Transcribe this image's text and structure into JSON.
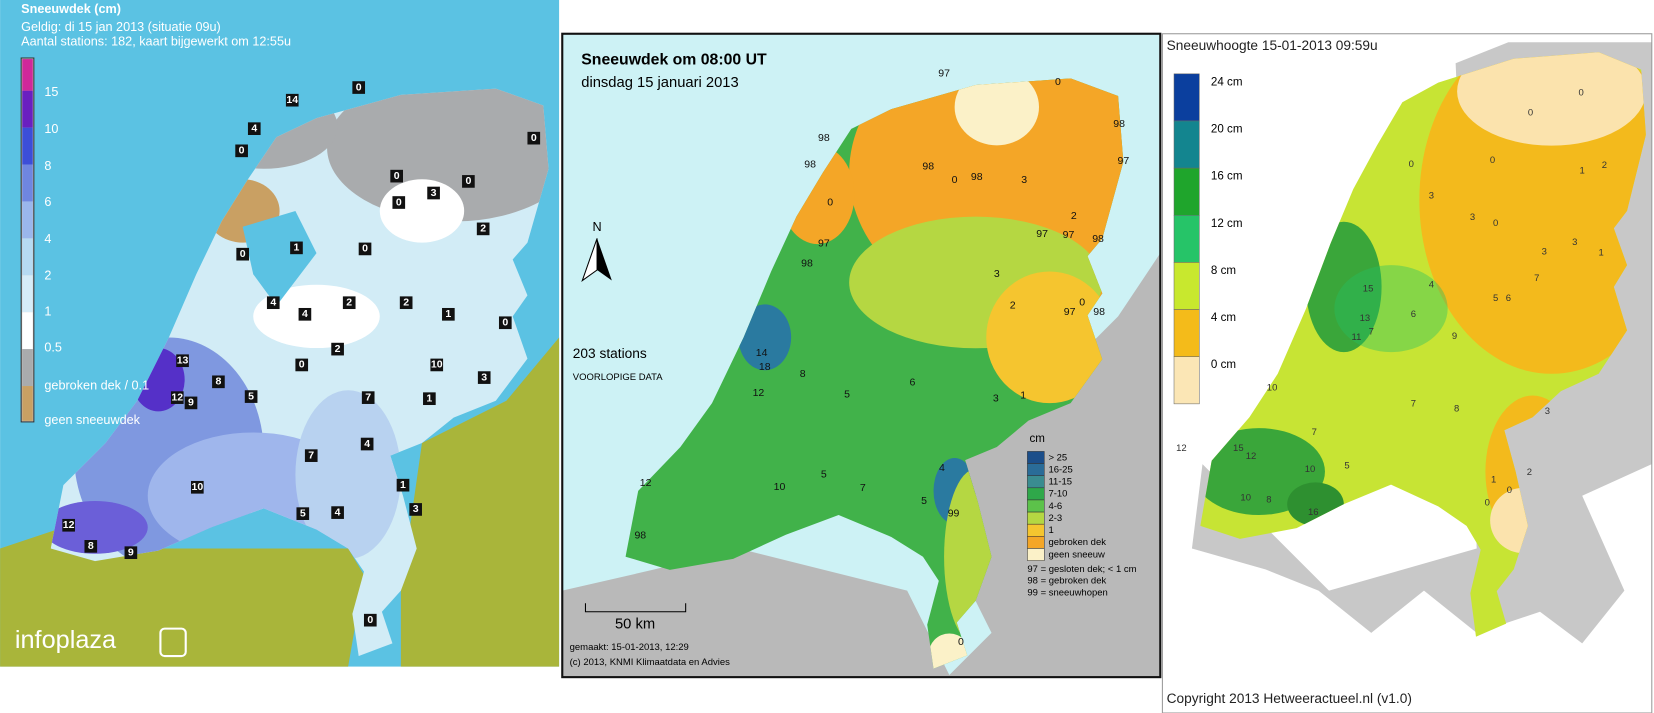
{
  "panels": [
    {
      "title": "Sneeuwdek (cm)",
      "lines": [
        "Geldig: di 15 jan 2013 (situatie 09u)",
        "Aantal stations: 182, kaart bijgewerkt om 12:55u"
      ],
      "legend": [
        "15",
        "10",
        "8",
        "6",
        "4",
        "2",
        "1",
        "0.5",
        "gebroken dek / 0.1",
        "geen sneeuwdek"
      ],
      "logo": "infoplaza",
      "stations": [
        0,
        14,
        4,
        0,
        0,
        0,
        3,
        0,
        0,
        2,
        0,
        1,
        0,
        4,
        4,
        2,
        2,
        1,
        0,
        13,
        8,
        12,
        9,
        5,
        2,
        0,
        10,
        1,
        3,
        7,
        10,
        7,
        5,
        4,
        4,
        12,
        8,
        9,
        3,
        0,
        1
      ]
    },
    {
      "title": "Sneeuwdek om 08:00 UT",
      "subtitle": "dinsdag 15 januari 2013",
      "north": "N",
      "count": "203 stations",
      "note": "VOORLOPIGE DATA",
      "legend_title": "cm",
      "legend": [
        "> 25",
        "16-25",
        "11-15",
        "7-10",
        "4-6",
        "2-3",
        "1",
        "gebroken dek",
        "geen sneeuw"
      ],
      "codes": [
        "97 = gesloten dek; < 1 cm",
        "98 = gebroken dek",
        "99 = sneeuwhopen"
      ],
      "scale": "50 km",
      "made": "gemaakt: 15-01-2013, 12:29",
      "credit": "(c) 2013, KNMI Klimaatdata en Advies",
      "stations": [
        97,
        98,
        98,
        0,
        97,
        98,
        98,
        0,
        98,
        0,
        98,
        97,
        3,
        97,
        98,
        2,
        97,
        3,
        2,
        0,
        98,
        97,
        14,
        18,
        8,
        12,
        5,
        6,
        99,
        10,
        5,
        7,
        4,
        5,
        3,
        1,
        0,
        98,
        12
      ]
    },
    {
      "title": "Sneeuwhoogte 15-01-2013 09:59u",
      "legend": [
        "24 cm",
        "20 cm",
        "16 cm",
        "12 cm",
        "8 cm",
        "4 cm",
        "0 cm"
      ],
      "credit": "Copyright 2013 Hetweeractueel.nl (v1.0)",
      "stations": [
        0,
        0,
        0,
        0,
        1,
        2,
        3,
        3,
        0,
        3,
        1,
        15,
        13,
        11,
        7,
        6,
        9,
        4,
        5,
        6,
        7,
        10,
        7,
        12,
        15,
        12,
        10,
        8,
        16,
        10,
        5,
        7,
        8,
        3,
        1,
        2,
        0,
        0,
        3
      ]
    }
  ]
}
